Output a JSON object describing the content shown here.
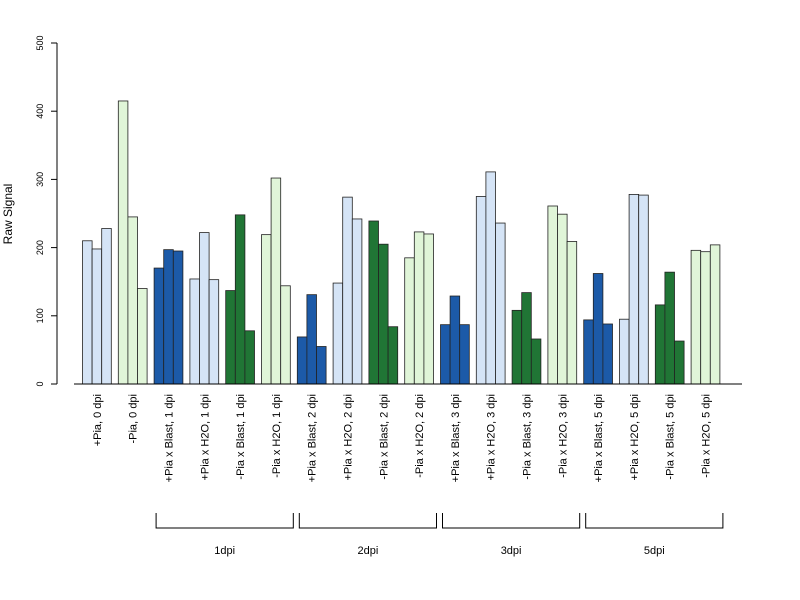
{
  "chart_data": {
    "type": "bar",
    "ylabel": "Raw Signal",
    "xlabel": "",
    "ylim": [
      0,
      500
    ],
    "yticks": [
      "0",
      "100",
      "200",
      "300",
      "400",
      "500"
    ],
    "grid": false,
    "bars_per_category": 3,
    "colors": {
      "light_blue": "#d5e4f6",
      "light_green": "#e0f5d8",
      "dark_blue": "#1c5aa8",
      "dark_green": "#207535",
      "outline": "#222222"
    },
    "categories": [
      {
        "label": "+Pia, 0 dpi",
        "color": "light_blue",
        "values": [
          210,
          198,
          228
        ]
      },
      {
        "label": "-Pia, 0 dpi",
        "color": "light_green",
        "values": [
          415,
          245,
          140
        ]
      },
      {
        "label": "+Pia x Blast, 1 dpi",
        "color": "dark_blue",
        "values": [
          170,
          197,
          195
        ]
      },
      {
        "label": "+Pia x H2O, 1 dpi",
        "color": "light_blue",
        "values": [
          154,
          222,
          153
        ]
      },
      {
        "label": "-Pia x Blast, 1 dpi",
        "color": "dark_green",
        "values": [
          137,
          248,
          78
        ]
      },
      {
        "label": "-Pia x H2O, 1 dpi",
        "color": "light_green",
        "values": [
          219,
          302,
          144
        ]
      },
      {
        "label": "+Pia x Blast, 2 dpi",
        "color": "dark_blue",
        "values": [
          69,
          131,
          55
        ]
      },
      {
        "label": "+Pia x H2O, 2 dpi",
        "color": "light_blue",
        "values": [
          148,
          274,
          242
        ]
      },
      {
        "label": "-Pia x Blast, 2 dpi",
        "color": "dark_green",
        "values": [
          239,
          205,
          84
        ]
      },
      {
        "label": "-Pia x H2O, 2 dpi",
        "color": "light_green",
        "values": [
          185,
          223,
          220
        ]
      },
      {
        "label": "+Pia x Blast, 3 dpi",
        "color": "dark_blue",
        "values": [
          87,
          129,
          87
        ]
      },
      {
        "label": "+Pia x H2O, 3 dpi",
        "color": "light_blue",
        "values": [
          275,
          311,
          236
        ]
      },
      {
        "label": "-Pia x Blast, 3 dpi",
        "color": "dark_green",
        "values": [
          108,
          134,
          66
        ]
      },
      {
        "label": "-Pia x H2O, 3 dpi",
        "color": "light_green",
        "values": [
          261,
          249,
          209
        ]
      },
      {
        "label": "+Pia x Blast, 5 dpi",
        "color": "dark_blue",
        "values": [
          94,
          162,
          88
        ]
      },
      {
        "label": "+Pia x H2O, 5 dpi",
        "color": "light_blue",
        "values": [
          95,
          278,
          277
        ]
      },
      {
        "label": "-Pia x Blast, 5 dpi",
        "color": "dark_green",
        "values": [
          116,
          164,
          63
        ]
      },
      {
        "label": "-Pia x H2O, 5 dpi",
        "color": "light_green",
        "values": [
          196,
          194,
          204
        ]
      }
    ],
    "groups": [
      {
        "label": "1dpi",
        "first_category": 2,
        "last_category": 5
      },
      {
        "label": "2dpi",
        "first_category": 6,
        "last_category": 9
      },
      {
        "label": "3dpi",
        "first_category": 10,
        "last_category": 13
      },
      {
        "label": "5dpi",
        "first_category": 14,
        "last_category": 17
      }
    ]
  }
}
